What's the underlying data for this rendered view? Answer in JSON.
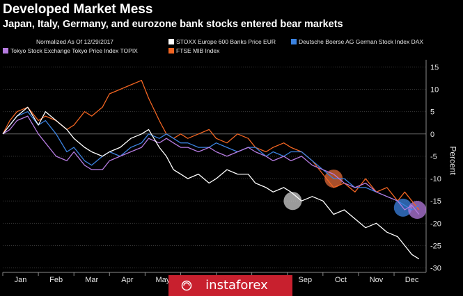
{
  "header": {
    "title": "Developed Market Mess",
    "subtitle": "Japan, Italy, Germany, and eurozone bank stocks entered bear markets",
    "note": "Normalized As Of 12/29/2017"
  },
  "watermark": {
    "text": "instaforex"
  },
  "chart_data": {
    "type": "line",
    "title": "Developed Market Mess",
    "subtitle": "Japan, Italy, Germany, and eurozone bank stocks entered bear markets",
    "ylabel": "Percent",
    "xlabel": "",
    "ylim": [
      -31,
      16
    ],
    "yticks": [
      15,
      10,
      5,
      0,
      -5,
      -10,
      -15,
      -20,
      -25,
      -30
    ],
    "ytick_labels": [
      "15",
      "10",
      "5",
      "0",
      "-5",
      "-10",
      "-15",
      "-20",
      "-25",
      "-30"
    ],
    "x_unit": "month index (0 = Jan 1, 2018)",
    "xlim": [
      0,
      11.9
    ],
    "xticks": [
      0.5,
      1.5,
      2.5,
      3.5,
      4.5,
      5.5,
      6.5,
      7.5,
      8.5,
      9.5,
      10.5,
      11.5
    ],
    "xtick_labels": [
      "Jan",
      "Feb",
      "Mar",
      "Apr",
      "May",
      "Jun",
      "Jul",
      "Aug",
      "Sep",
      "Oct",
      "Nov",
      "Dec"
    ],
    "grid": true,
    "legend_position": "top",
    "series": [
      {
        "name": "STOXX Europe 600 Banks Price EUR",
        "color": "#ffffff",
        "x": [
          0,
          0.2,
          0.4,
          0.7,
          1.0,
          1.2,
          1.5,
          1.8,
          2.0,
          2.3,
          2.5,
          2.8,
          3.0,
          3.3,
          3.6,
          3.9,
          4.1,
          4.4,
          4.6,
          4.8,
          5.0,
          5.2,
          5.5,
          5.8,
          6.0,
          6.3,
          6.6,
          6.9,
          7.1,
          7.4,
          7.6,
          7.9,
          8.1,
          8.4,
          8.7,
          9.0,
          9.3,
          9.6,
          9.9,
          10.2,
          10.5,
          10.8,
          11.1,
          11.3,
          11.5,
          11.7
        ],
        "values": [
          0,
          2,
          4,
          6,
          2,
          5,
          3,
          1,
          -1,
          -3,
          -4,
          -5,
          -4,
          -3,
          -1,
          0,
          1,
          -3,
          -5,
          -8,
          -9,
          -10,
          -9,
          -11,
          -10,
          -8,
          -9,
          -9,
          -11,
          -12,
          -13,
          -12,
          -13,
          -15,
          -14,
          -15,
          -18,
          -17,
          -19,
          -21,
          -20,
          -22,
          -23,
          -25,
          -27,
          -28
        ]
      },
      {
        "name": "Deutsche Boerse AG German Stock Index DAX",
        "color": "#3b82e0",
        "x": [
          0,
          0.2,
          0.4,
          0.7,
          1.0,
          1.2,
          1.5,
          1.8,
          2.0,
          2.3,
          2.5,
          2.8,
          3.0,
          3.3,
          3.6,
          3.9,
          4.1,
          4.4,
          4.6,
          4.8,
          5.0,
          5.2,
          5.5,
          5.8,
          6.0,
          6.3,
          6.6,
          6.9,
          7.1,
          7.4,
          7.6,
          7.9,
          8.1,
          8.4,
          8.7,
          9.0,
          9.3,
          9.6,
          9.9,
          10.2,
          10.5,
          10.8,
          11.1,
          11.3,
          11.5,
          11.7
        ],
        "values": [
          0,
          2,
          4,
          5,
          2,
          3,
          0,
          -4,
          -3,
          -6,
          -7,
          -5,
          -4,
          -5,
          -3,
          -2,
          0,
          -1,
          0,
          -1,
          -2,
          -2,
          -3,
          -3,
          -2,
          -3,
          -4,
          -3,
          -3,
          -5,
          -4,
          -5,
          -4,
          -4,
          -6,
          -8,
          -10,
          -10,
          -12,
          -12,
          -13,
          -14,
          -15,
          -16,
          -17,
          -16
        ]
      },
      {
        "name": "Tokyo Stock Exchange Tokyo Price Index TOPIX",
        "color": "#b57bdf",
        "x": [
          0,
          0.2,
          0.4,
          0.7,
          1.0,
          1.2,
          1.5,
          1.8,
          2.0,
          2.3,
          2.5,
          2.8,
          3.0,
          3.3,
          3.6,
          3.9,
          4.1,
          4.4,
          4.6,
          4.8,
          5.0,
          5.2,
          5.5,
          5.8,
          6.0,
          6.3,
          6.6,
          6.9,
          7.1,
          7.4,
          7.6,
          7.9,
          8.1,
          8.4,
          8.7,
          9.0,
          9.3,
          9.6,
          9.9,
          10.2,
          10.5,
          10.8,
          11.1,
          11.3,
          11.5,
          11.7
        ],
        "values": [
          0,
          1,
          3,
          4,
          0,
          -2,
          -5,
          -6,
          -4,
          -7,
          -8,
          -8,
          -6,
          -5,
          -4,
          -3,
          -1,
          -2,
          -1,
          -2,
          -3,
          -3,
          -4,
          -3,
          -4,
          -5,
          -4,
          -3,
          -4,
          -5,
          -6,
          -5,
          -6,
          -5,
          -7,
          -8,
          -9,
          -11,
          -12,
          -11,
          -13,
          -14,
          -15,
          -17,
          -16,
          -18
        ]
      },
      {
        "name": "FTSE MIB Index",
        "color": "#f26522",
        "x": [
          0,
          0.2,
          0.4,
          0.7,
          1.0,
          1.2,
          1.5,
          1.8,
          2.0,
          2.3,
          2.5,
          2.8,
          3.0,
          3.3,
          3.6,
          3.9,
          4.1,
          4.4,
          4.6,
          4.8,
          5.0,
          5.2,
          5.5,
          5.8,
          6.0,
          6.3,
          6.6,
          6.9,
          7.1,
          7.4,
          7.6,
          7.9,
          8.1,
          8.4,
          8.7,
          9.0,
          9.3,
          9.6,
          9.9,
          10.2,
          10.5,
          10.8,
          11.1,
          11.3,
          11.5,
          11.7
        ],
        "values": [
          0,
          3,
          5,
          6,
          3,
          4,
          3,
          1,
          2,
          5,
          4,
          6,
          9,
          10,
          11,
          12,
          8,
          3,
          0,
          -1,
          0,
          -1,
          0,
          1,
          -1,
          -2,
          0,
          -1,
          -3,
          -4,
          -3,
          -2,
          -3,
          -4,
          -6,
          -9,
          -12,
          -11,
          -13,
          -10,
          -13,
          -12,
          -15,
          -13,
          -15,
          -17
        ]
      }
    ],
    "highlights": [
      {
        "x": 8.15,
        "y": -15,
        "color": "#cfcfcf"
      },
      {
        "x": 9.3,
        "y": -10,
        "color": "#e06a3a"
      },
      {
        "x": 11.25,
        "y": -16.5,
        "color": "#3b82e0"
      },
      {
        "x": 11.65,
        "y": -17,
        "color": "#b57bdf"
      }
    ]
  }
}
